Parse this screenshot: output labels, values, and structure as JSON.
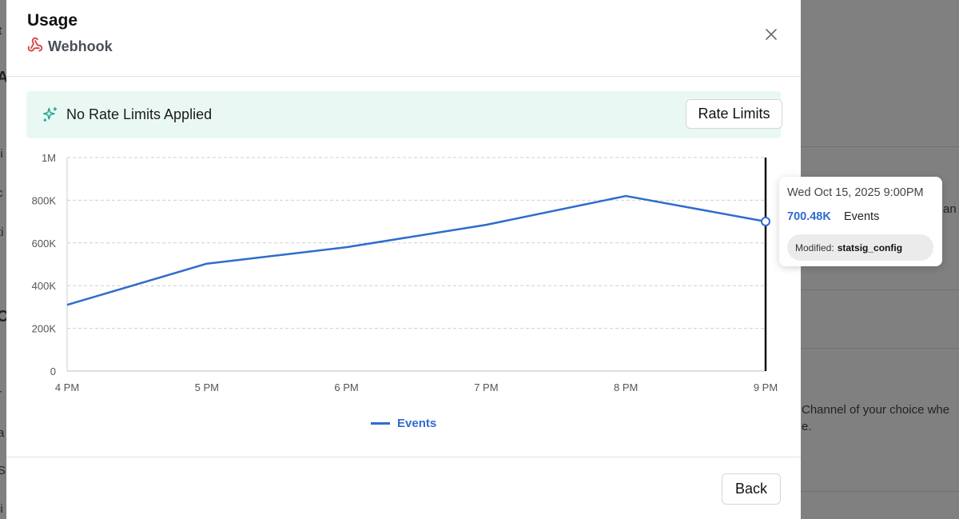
{
  "background": {
    "fragments": [
      "t",
      "A",
      "li",
      "c",
      "ti",
      "Co",
      "r",
      "a",
      "S",
      "li",
      "an",
      "Channel of your choice whe",
      "e."
    ]
  },
  "modal": {
    "title": "Usage",
    "subtitle": "Webhook",
    "icons": {
      "subtitle": "webhook-icon",
      "close": "close-icon",
      "banner": "sparkle-icon"
    },
    "banner": {
      "text": "No Rate Limits Applied",
      "button_label": "Rate Limits",
      "bg_color": "#eaf8f4",
      "icon_color": "#1aa88a"
    },
    "back_label": "Back"
  },
  "chart_data": {
    "type": "line",
    "categories": [
      "4 PM",
      "5 PM",
      "6 PM",
      "7 PM",
      "8 PM",
      "9 PM"
    ],
    "series": [
      {
        "name": "Events",
        "values": [
          310000,
          503000,
          580000,
          685000,
          820000,
          700480
        ],
        "color": "#2f6ccc"
      }
    ],
    "yticks": [
      "0",
      "200K",
      "400K",
      "600K",
      "800K",
      "1M"
    ],
    "ylim": [
      0,
      1000000
    ],
    "grid": true,
    "legend": "bottom-center",
    "hover_index": 5
  },
  "tooltip": {
    "date": "Wed Oct 15, 2025 9:00PM",
    "value": "700.48K",
    "metric": "Events",
    "modified_label": "Modified:",
    "modified_value": "statsig_config"
  }
}
